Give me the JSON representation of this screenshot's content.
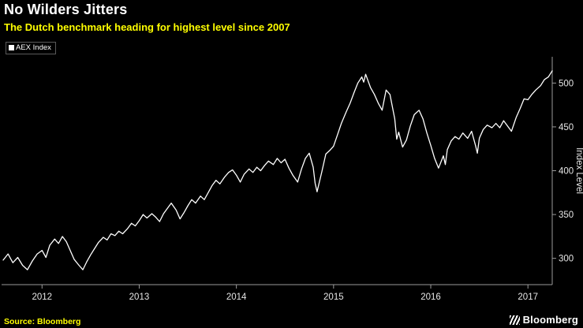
{
  "header": {
    "title": "No Wilders Jitters",
    "subtitle": "The Dutch benchmark heading for highest level since 2007"
  },
  "legend": {
    "label": "AEX Index"
  },
  "footer": {
    "source": "Source: Bloomberg",
    "brand": "Bloomberg"
  },
  "colors": {
    "background": "#000000",
    "accent_yellow": "#ffff00",
    "line": "#ffffff",
    "axis": "#9a9a9a",
    "tick_text": "#e6e6e6"
  },
  "chart_data": {
    "type": "line",
    "title": "No Wilders Jitters",
    "subtitle": "The Dutch benchmark heading for highest level since 2007",
    "xlabel": "",
    "ylabel": "Index Level",
    "xlim": [
      2011.6,
      2017.25
    ],
    "ylim": [
      270,
      530
    ],
    "x_ticks": [
      2012,
      2013,
      2014,
      2015,
      2016,
      2017
    ],
    "y_ticks": [
      300,
      350,
      400,
      450,
      500
    ],
    "grid": false,
    "legend_position": "top-left",
    "series": [
      {
        "name": "AEX Index",
        "color": "#ffffff",
        "points": [
          [
            2011.6,
            298
          ],
          [
            2011.65,
            305
          ],
          [
            2011.7,
            295
          ],
          [
            2011.75,
            301
          ],
          [
            2011.8,
            292
          ],
          [
            2011.85,
            287
          ],
          [
            2011.9,
            297
          ],
          [
            2011.95,
            305
          ],
          [
            2012.0,
            309
          ],
          [
            2012.04,
            301
          ],
          [
            2012.08,
            315
          ],
          [
            2012.13,
            322
          ],
          [
            2012.17,
            317
          ],
          [
            2012.21,
            325
          ],
          [
            2012.25,
            319
          ],
          [
            2012.29,
            309
          ],
          [
            2012.33,
            299
          ],
          [
            2012.38,
            292
          ],
          [
            2012.42,
            287
          ],
          [
            2012.46,
            296
          ],
          [
            2012.5,
            304
          ],
          [
            2012.54,
            311
          ],
          [
            2012.58,
            318
          ],
          [
            2012.63,
            324
          ],
          [
            2012.67,
            321
          ],
          [
            2012.71,
            328
          ],
          [
            2012.75,
            326
          ],
          [
            2012.79,
            331
          ],
          [
            2012.83,
            328
          ],
          [
            2012.88,
            334
          ],
          [
            2012.92,
            340
          ],
          [
            2012.96,
            337
          ],
          [
            2013.0,
            343
          ],
          [
            2013.04,
            350
          ],
          [
            2013.08,
            346
          ],
          [
            2013.13,
            351
          ],
          [
            2013.17,
            347
          ],
          [
            2013.21,
            342
          ],
          [
            2013.25,
            351
          ],
          [
            2013.29,
            357
          ],
          [
            2013.33,
            363
          ],
          [
            2013.38,
            355
          ],
          [
            2013.42,
            345
          ],
          [
            2013.46,
            352
          ],
          [
            2013.5,
            360
          ],
          [
            2013.54,
            367
          ],
          [
            2013.58,
            363
          ],
          [
            2013.63,
            371
          ],
          [
            2013.67,
            367
          ],
          [
            2013.71,
            375
          ],
          [
            2013.75,
            383
          ],
          [
            2013.79,
            389
          ],
          [
            2013.83,
            385
          ],
          [
            2013.88,
            393
          ],
          [
            2013.92,
            398
          ],
          [
            2013.96,
            401
          ],
          [
            2014.0,
            395
          ],
          [
            2014.04,
            387
          ],
          [
            2014.08,
            396
          ],
          [
            2014.13,
            402
          ],
          [
            2014.17,
            398
          ],
          [
            2014.21,
            404
          ],
          [
            2014.25,
            400
          ],
          [
            2014.29,
            406
          ],
          [
            2014.33,
            411
          ],
          [
            2014.38,
            407
          ],
          [
            2014.42,
            414
          ],
          [
            2014.46,
            409
          ],
          [
            2014.5,
            413
          ],
          [
            2014.54,
            403
          ],
          [
            2014.58,
            395
          ],
          [
            2014.63,
            387
          ],
          [
            2014.67,
            402
          ],
          [
            2014.71,
            414
          ],
          [
            2014.75,
            420
          ],
          [
            2014.79,
            404
          ],
          [
            2014.81,
            386
          ],
          [
            2014.83,
            376
          ],
          [
            2014.88,
            399
          ],
          [
            2014.92,
            419
          ],
          [
            2014.96,
            423
          ],
          [
            2015.0,
            428
          ],
          [
            2015.04,
            441
          ],
          [
            2015.08,
            454
          ],
          [
            2015.13,
            467
          ],
          [
            2015.17,
            477
          ],
          [
            2015.21,
            489
          ],
          [
            2015.25,
            500
          ],
          [
            2015.29,
            507
          ],
          [
            2015.31,
            501
          ],
          [
            2015.33,
            510
          ],
          [
            2015.38,
            495
          ],
          [
            2015.42,
            487
          ],
          [
            2015.46,
            477
          ],
          [
            2015.5,
            469
          ],
          [
            2015.54,
            492
          ],
          [
            2015.58,
            487
          ],
          [
            2015.63,
            459
          ],
          [
            2015.65,
            436
          ],
          [
            2015.67,
            444
          ],
          [
            2015.71,
            427
          ],
          [
            2015.75,
            435
          ],
          [
            2015.79,
            451
          ],
          [
            2015.83,
            464
          ],
          [
            2015.88,
            469
          ],
          [
            2015.92,
            459
          ],
          [
            2015.96,
            443
          ],
          [
            2016.0,
            429
          ],
          [
            2016.04,
            414
          ],
          [
            2016.08,
            403
          ],
          [
            2016.13,
            417
          ],
          [
            2016.15,
            407
          ],
          [
            2016.17,
            424
          ],
          [
            2016.21,
            434
          ],
          [
            2016.25,
            439
          ],
          [
            2016.29,
            436
          ],
          [
            2016.33,
            443
          ],
          [
            2016.38,
            437
          ],
          [
            2016.42,
            445
          ],
          [
            2016.46,
            429
          ],
          [
            2016.48,
            420
          ],
          [
            2016.5,
            437
          ],
          [
            2016.54,
            447
          ],
          [
            2016.58,
            452
          ],
          [
            2016.63,
            449
          ],
          [
            2016.67,
            454
          ],
          [
            2016.71,
            449
          ],
          [
            2016.75,
            457
          ],
          [
            2016.79,
            451
          ],
          [
            2016.83,
            445
          ],
          [
            2016.88,
            461
          ],
          [
            2016.92,
            471
          ],
          [
            2016.96,
            482
          ],
          [
            2017.0,
            481
          ],
          [
            2017.04,
            487
          ],
          [
            2017.08,
            492
          ],
          [
            2017.13,
            497
          ],
          [
            2017.17,
            504
          ],
          [
            2017.21,
            507
          ],
          [
            2017.25,
            514
          ]
        ]
      }
    ]
  }
}
